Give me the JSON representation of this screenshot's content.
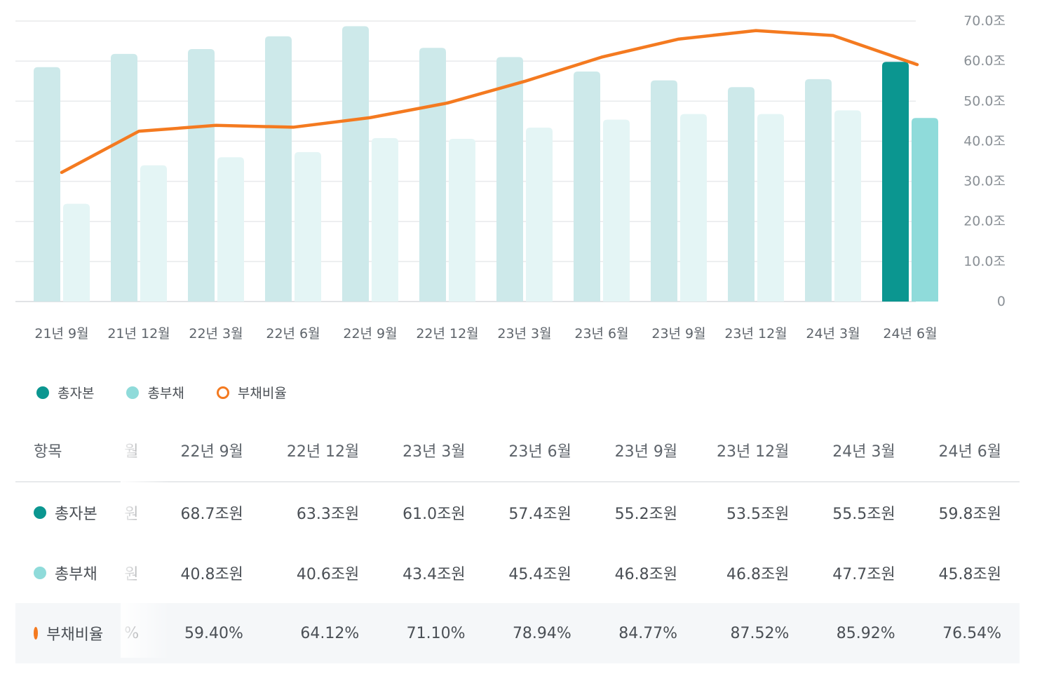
{
  "chart_data": {
    "type": "bar",
    "categories": [
      "21년 9월",
      "21년 12월",
      "22년 3월",
      "22년 6월",
      "22년 9월",
      "22년 12월",
      "23년 3월",
      "23년 6월",
      "23년 9월",
      "23년 12월",
      "24년 3월",
      "24년 6월"
    ],
    "series": [
      {
        "name": "총자본",
        "type": "bar",
        "color": "#0b9690",
        "values": [
          58.5,
          61.8,
          63.0,
          66.2,
          68.7,
          63.3,
          61.0,
          57.4,
          55.2,
          53.5,
          55.5,
          59.8
        ]
      },
      {
        "name": "총부채",
        "type": "bar",
        "color": "#8fdbda",
        "values": [
          24.4,
          34.0,
          36.0,
          37.3,
          40.8,
          40.6,
          43.4,
          45.4,
          46.8,
          46.8,
          47.7,
          45.8
        ]
      },
      {
        "name": "부채비율",
        "type": "line",
        "color": "#f47a20",
        "values": [
          41.7,
          55.0,
          56.9,
          56.3,
          59.4,
          64.12,
          71.1,
          78.94,
          84.77,
          87.52,
          85.92,
          76.54
        ]
      }
    ],
    "y_ticks": [
      "70.0조",
      "60.0조",
      "50.0조",
      "40.0조",
      "30.0조",
      "20.0조",
      "10.0조",
      "0"
    ],
    "ylim": [
      0,
      70
    ],
    "y2lim": [
      0,
      90.6
    ],
    "highlight_last": true,
    "grid": true,
    "legend_position": "bottom-left"
  },
  "legend": {
    "equity": "총자본",
    "liabilities": "총부채",
    "ratio": "부채비율"
  },
  "table": {
    "header_label": "항목",
    "clipped_header": "월",
    "columns": [
      "22년 9월",
      "22년 12월",
      "23년 3월",
      "23년 6월",
      "23년 9월",
      "23년 12월",
      "24년 3월",
      "24년 6월"
    ],
    "rows": {
      "equity": {
        "label": "총자본",
        "clipped": "원",
        "values": [
          "68.7조원",
          "63.3조원",
          "61.0조원",
          "57.4조원",
          "55.2조원",
          "53.5조원",
          "55.5조원",
          "59.8조원"
        ]
      },
      "liabilities": {
        "label": "총부채",
        "clipped": "원",
        "values": [
          "40.8조원",
          "40.6조원",
          "43.4조원",
          "45.4조원",
          "46.8조원",
          "46.8조원",
          "47.7조원",
          "45.8조원"
        ]
      },
      "ratio": {
        "label": "부채비율",
        "clipped": "%",
        "values": [
          "59.40%",
          "64.12%",
          "71.10%",
          "78.94%",
          "84.77%",
          "87.52%",
          "85.92%",
          "76.54%"
        ]
      }
    }
  },
  "colors": {
    "equity": "#0b9690",
    "equity_faded": "#cde9ea",
    "liabilities": "#8fdbda",
    "liabilities_faded": "#e4f5f5",
    "ratio": "#f47a20"
  }
}
